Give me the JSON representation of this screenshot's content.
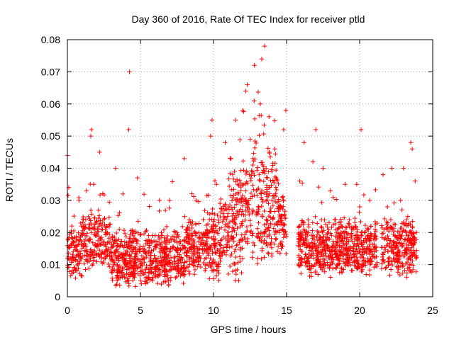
{
  "chart_data": {
    "type": "scatter",
    "title": "Day 360 of 2016, Rate Of TEC Index for receiver ptld",
    "xlabel": "GPS time / hours",
    "ylabel": "ROTI / TECUs",
    "xlim": [
      0,
      25
    ],
    "ylim": [
      0,
      0.08
    ],
    "x_ticks": [
      0,
      5,
      10,
      15,
      20,
      25
    ],
    "x_tick_labels": [
      "0",
      "5",
      "10",
      "15",
      "20",
      "25"
    ],
    "y_ticks": [
      0,
      0.01,
      0.02,
      0.03,
      0.04,
      0.05,
      0.06,
      0.07,
      0.08
    ],
    "y_tick_labels": [
      "0",
      "0.01",
      "0.02",
      "0.03",
      "0.04",
      "0.05",
      "0.06",
      "0.07",
      "0.08"
    ],
    "grid": true,
    "marker": "+",
    "color": "#ff0000",
    "data_gaps_hours": [
      [
        15.0,
        15.8
      ],
      [
        21.2,
        21.5
      ]
    ],
    "series": [
      {
        "name": "ROTI",
        "x": [
          0.0,
          0.05,
          0.1,
          0.2,
          0.3,
          0.5,
          0.8,
          1.0,
          1.3,
          1.5,
          1.6,
          1.65,
          1.8,
          2.0,
          2.2,
          2.4,
          2.6,
          3.0,
          3.3,
          3.5,
          3.8,
          4.0,
          4.2,
          4.25,
          4.3,
          4.5,
          4.8,
          5.0,
          5.3,
          5.5,
          5.8,
          6.0,
          6.3,
          6.5,
          6.8,
          7.0,
          7.3,
          7.5,
          7.8,
          8.0,
          8.3,
          8.5,
          8.8,
          9.0,
          9.3,
          9.5,
          9.8,
          9.9,
          10.0,
          10.2,
          10.5,
          10.8,
          11.0,
          11.2,
          11.5,
          11.7,
          12.0,
          12.2,
          12.3,
          12.5,
          12.8,
          13.0,
          13.2,
          13.3,
          13.5,
          13.6,
          13.8,
          14.0,
          14.2,
          14.5,
          14.8,
          14.95,
          15.9,
          16.2,
          16.5,
          16.8,
          17.0,
          17.2,
          17.5,
          17.8,
          18.0,
          18.3,
          18.6,
          19.0,
          19.3,
          19.6,
          19.8,
          20.0,
          20.1,
          20.4,
          20.7,
          21.0,
          21.6,
          21.9,
          22.2,
          22.5,
          22.8,
          23.0,
          23.2,
          23.5,
          23.6,
          23.8
        ],
        "y": [
          0.044,
          0.018,
          0.034,
          0.012,
          0.022,
          0.009,
          0.03,
          0.015,
          0.033,
          0.011,
          0.05,
          0.052,
          0.035,
          0.013,
          0.045,
          0.021,
          0.012,
          0.008,
          0.04,
          0.012,
          0.032,
          0.01,
          0.052,
          0.07,
          0.018,
          0.011,
          0.037,
          0.009,
          0.014,
          0.006,
          0.019,
          0.012,
          0.03,
          0.008,
          0.015,
          0.03,
          0.011,
          0.02,
          0.009,
          0.043,
          0.018,
          0.012,
          0.03,
          0.01,
          0.024,
          0.014,
          0.05,
          0.055,
          0.022,
          0.035,
          0.016,
          0.048,
          0.028,
          0.043,
          0.055,
          0.032,
          0.058,
          0.064,
          0.028,
          0.049,
          0.072,
          0.026,
          0.06,
          0.074,
          0.078,
          0.04,
          0.056,
          0.03,
          0.046,
          0.02,
          0.052,
          0.058,
          0.036,
          0.048,
          0.02,
          0.042,
          0.052,
          0.02,
          0.04,
          0.016,
          0.033,
          0.024,
          0.018,
          0.035,
          0.022,
          0.014,
          0.035,
          0.028,
          0.052,
          0.018,
          0.03,
          0.014,
          0.038,
          0.028,
          0.04,
          0.016,
          0.03,
          0.04,
          0.02,
          0.048,
          0.046,
          0.036
        ]
      }
    ]
  }
}
